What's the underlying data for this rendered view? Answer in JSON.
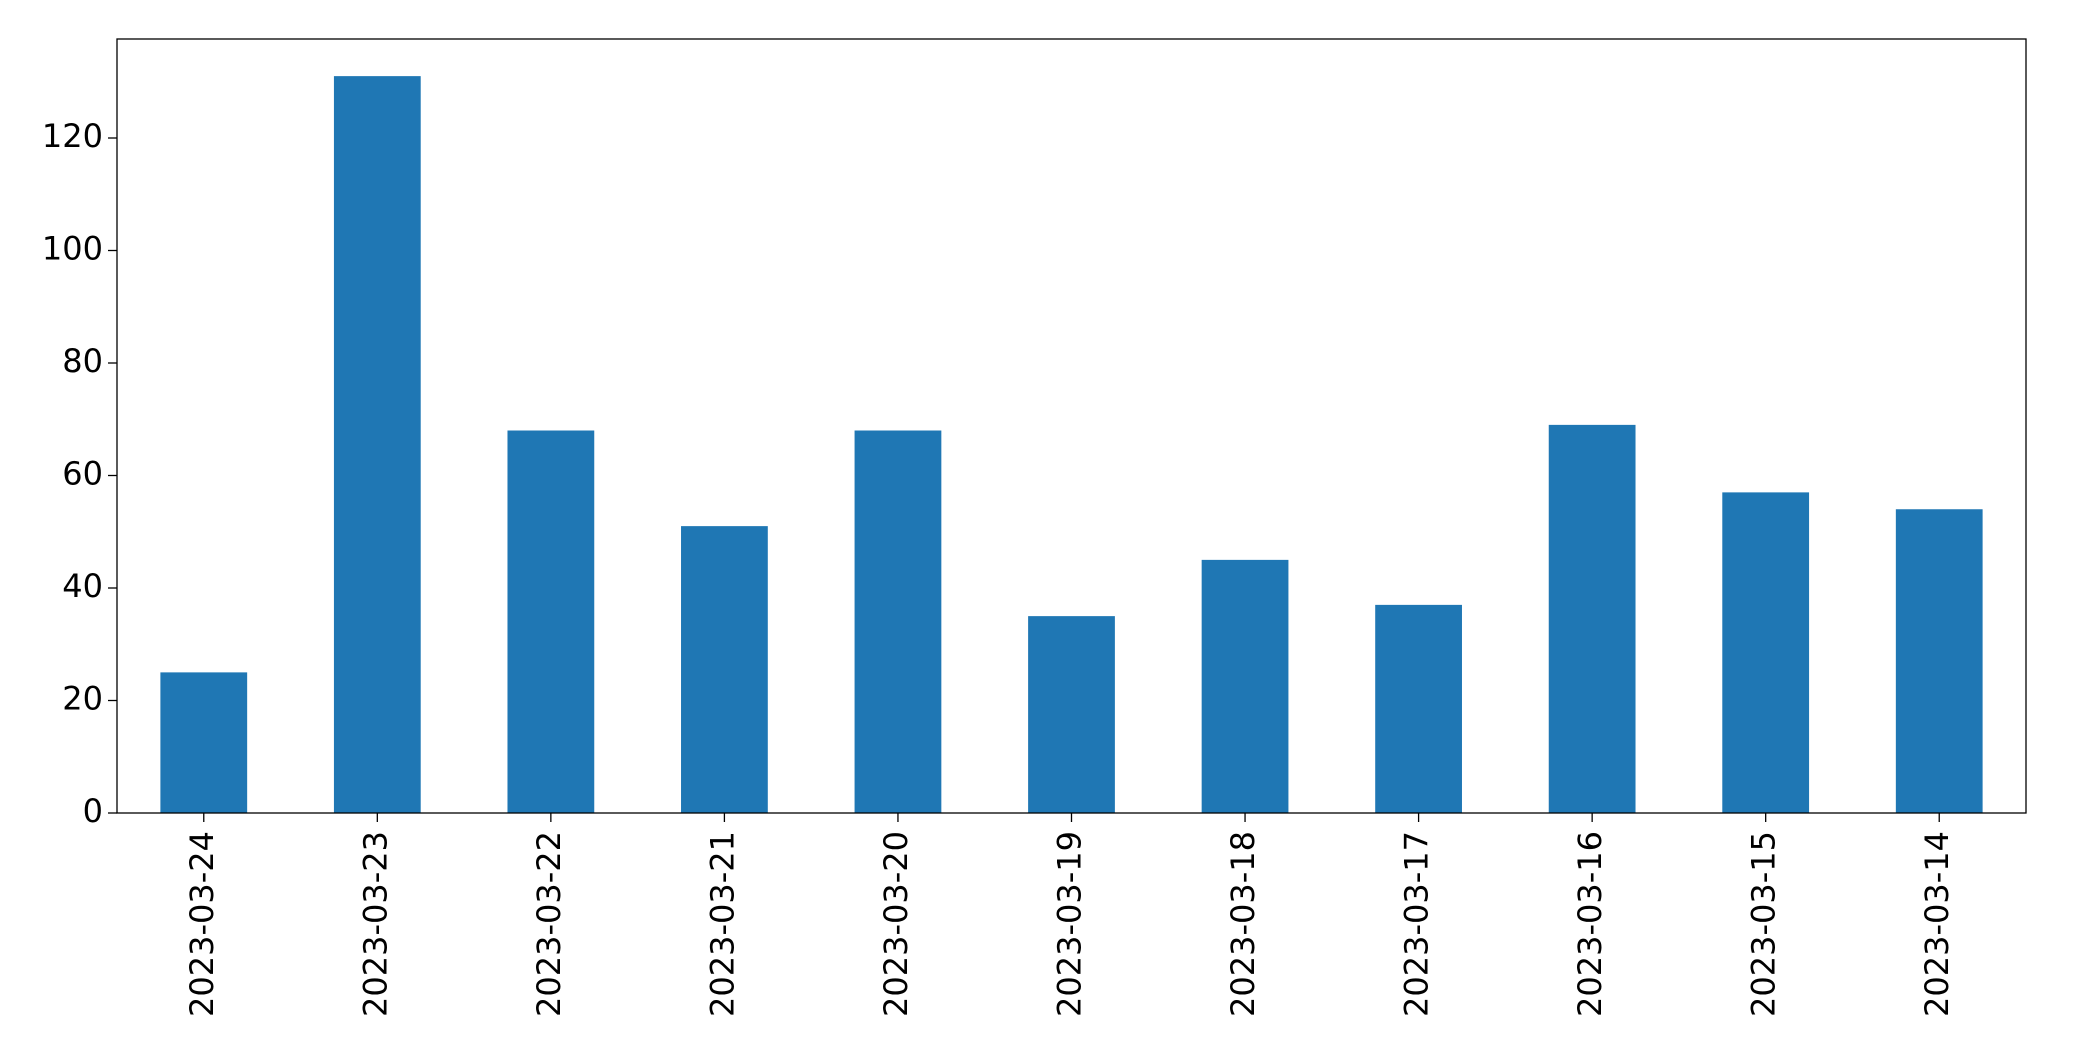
{
  "chart_data": {
    "type": "bar",
    "categories": [
      "2023-03-24",
      "2023-03-23",
      "2023-03-22",
      "2023-03-21",
      "2023-03-20",
      "2023-03-19",
      "2023-03-18",
      "2023-03-17",
      "2023-03-16",
      "2023-03-15",
      "2023-03-14"
    ],
    "values": [
      25,
      131,
      68,
      51,
      68,
      35,
      45,
      37,
      69,
      57,
      54
    ],
    "color": "#1f77b4",
    "ylim": [
      0,
      137.6
    ],
    "yticks": [
      0,
      20,
      40,
      60,
      80,
      100,
      120
    ],
    "grid": false
  }
}
